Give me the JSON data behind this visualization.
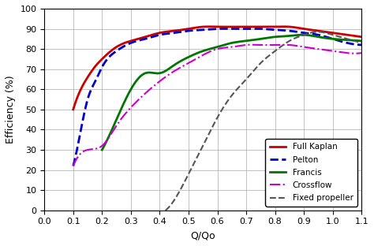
{
  "title": "",
  "xlabel": "Q/Qo",
  "ylabel": "Efficiency (%)",
  "xlim": [
    0,
    1.1
  ],
  "ylim": [
    0,
    100
  ],
  "xticks": [
    0,
    0.1,
    0.2,
    0.3,
    0.4,
    0.5,
    0.6,
    0.7,
    0.8,
    0.9,
    1.0,
    1.1
  ],
  "yticks": [
    0,
    10,
    20,
    30,
    40,
    50,
    60,
    70,
    80,
    90,
    100
  ],
  "curves": {
    "Full Kaplan": {
      "color": "#cc0000",
      "linestyle": "-",
      "linewidth": 2.0,
      "x": [
        0.1,
        0.12,
        0.15,
        0.18,
        0.2,
        0.25,
        0.3,
        0.35,
        0.4,
        0.45,
        0.5,
        0.55,
        0.6,
        0.65,
        0.7,
        0.75,
        0.8,
        0.85,
        0.9,
        0.95,
        1.0,
        1.05,
        1.1
      ],
      "y": [
        50,
        58,
        66,
        72,
        75,
        81,
        84,
        86,
        88,
        89,
        90,
        91,
        91,
        91,
        91,
        91,
        91,
        91,
        90,
        89,
        88,
        87,
        86
      ]
    },
    "Pelton": {
      "color": "#0000cc",
      "linestyle": "--",
      "linewidth": 2.0,
      "x": [
        0.1,
        0.12,
        0.15,
        0.18,
        0.2,
        0.25,
        0.3,
        0.35,
        0.4,
        0.45,
        0.5,
        0.55,
        0.6,
        0.65,
        0.7,
        0.75,
        0.8,
        0.85,
        0.9,
        0.95,
        1.0,
        1.05,
        1.1
      ],
      "y": [
        22,
        35,
        55,
        65,
        71,
        79,
        83,
        85,
        87,
        88,
        89,
        89.5,
        90,
        90,
        90,
        90,
        89.5,
        89,
        88,
        87,
        85,
        83,
        82
      ]
    },
    "Francis": {
      "color": "#007700",
      "linestyle": "-",
      "linewidth": 2.0,
      "x": [
        0.2,
        0.25,
        0.3,
        0.35,
        0.4,
        0.45,
        0.5,
        0.55,
        0.6,
        0.65,
        0.7,
        0.75,
        0.8,
        0.85,
        0.9,
        0.95,
        1.0,
        1.05,
        1.1
      ],
      "y": [
        30,
        45,
        60,
        68,
        68,
        72,
        76,
        79,
        81,
        83,
        84,
        85,
        86,
        86.5,
        87,
        86,
        85,
        84.5,
        84
      ]
    },
    "Crossflow": {
      "color": "#cc00cc",
      "linestyle": "-.",
      "linewidth": 1.5,
      "x": [
        0.1,
        0.15,
        0.2,
        0.25,
        0.3,
        0.35,
        0.4,
        0.45,
        0.5,
        0.55,
        0.6,
        0.65,
        0.7,
        0.75,
        0.8,
        0.85,
        0.9,
        0.95,
        1.0,
        1.05,
        1.1
      ],
      "y": [
        22,
        30,
        32,
        42,
        51,
        58,
        64,
        69,
        73,
        77,
        80,
        81,
        82,
        82,
        82,
        82,
        81,
        80,
        79,
        78,
        78
      ]
    },
    "Fixed propeller": {
      "color": "#555555",
      "linestyle": "--",
      "linewidth": 1.5,
      "x": [
        0.42,
        0.45,
        0.5,
        0.55,
        0.6,
        0.65,
        0.7,
        0.75,
        0.8,
        0.85,
        0.9,
        0.95,
        1.0,
        1.05,
        1.1
      ],
      "y": [
        0,
        5,
        18,
        32,
        46,
        57,
        65,
        73,
        79,
        84,
        87,
        88.5,
        87,
        85,
        83
      ]
    }
  },
  "legend": {
    "Full Kaplan": {
      "color": "#cc0000",
      "linestyle": "-",
      "linewidth": 2.0
    },
    "Pelton": {
      "color": "#0000cc",
      "linestyle": "--",
      "linewidth": 2.0
    },
    "Francis": {
      "color": "#007700",
      "linestyle": "-",
      "linewidth": 2.0
    },
    "Crossflow": {
      "color": "#cc00cc",
      "linestyle": "-.",
      "linewidth": 1.5
    },
    "Fixed propeller": {
      "color": "#555555",
      "linestyle": "--",
      "linewidth": 1.5
    }
  },
  "background_color": "#ffffff",
  "grid_color": "#aaaaaa"
}
